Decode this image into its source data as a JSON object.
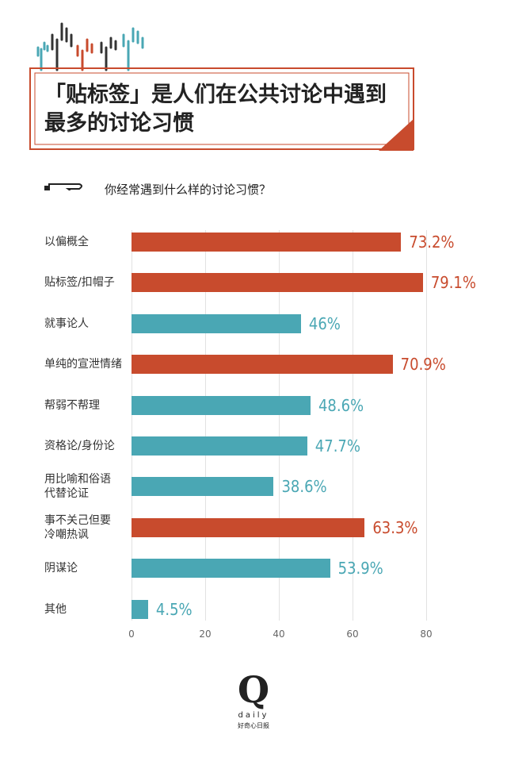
{
  "chart_data": {
    "type": "hbar",
    "title": "「贴标签」是人们在公共讨论中遇到最多的讨论习惯",
    "subtitle": "你经常遇到什么样的讨论习惯？",
    "categories": [
      "以偏概全",
      "贴标签/扣帽子",
      "就事论人",
      "单纯的宣泄情绪",
      "帮弱不帮理",
      "资格论/身份论",
      "用比喻和俗语\n代替论证",
      "事不关己但要\n冷嘲热讽",
      "阴谋论",
      "其他"
    ],
    "values": [
      73.2,
      79.1,
      46,
      70.9,
      48.6,
      47.7,
      38.6,
      63.3,
      53.9,
      4.5
    ],
    "value_labels": [
      "73.2%",
      "79.1%",
      "46%",
      "70.9%",
      "48.6%",
      "47.7%",
      "38.6%",
      "63.3%",
      "53.9%",
      "4.5%"
    ],
    "colors": [
      "#c84b2d",
      "#c84b2d",
      "#4aa7b4",
      "#c84b2d",
      "#4aa7b4",
      "#4aa7b4",
      "#4aa7b4",
      "#c84b2d",
      "#4aa7b4",
      "#4aa7b4"
    ],
    "xlim": [
      0,
      80
    ],
    "xticks": [
      0,
      20,
      40,
      60,
      80
    ],
    "grid": true
  },
  "footer": {
    "logo": "Q",
    "name": "daily",
    "tagline": "好奇心日报"
  }
}
